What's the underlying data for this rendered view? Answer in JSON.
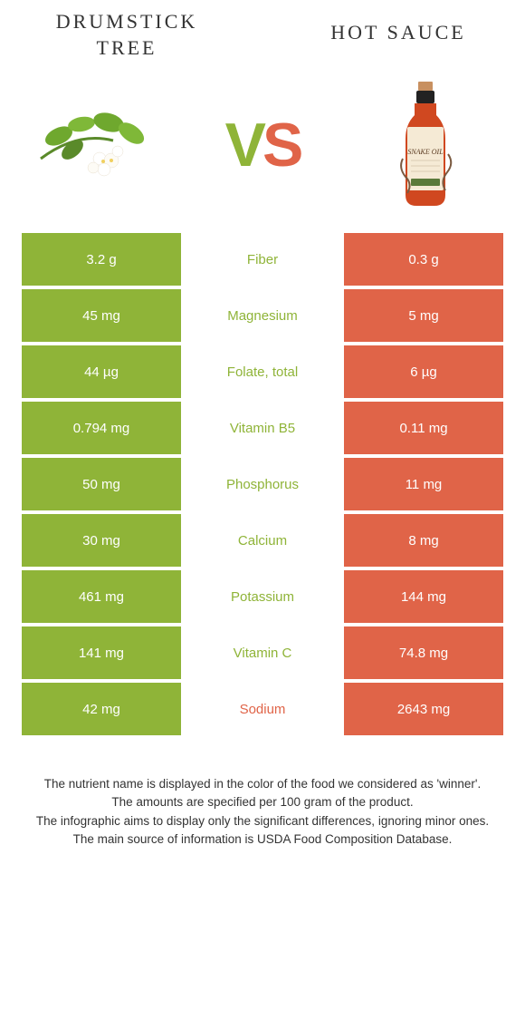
{
  "header": {
    "left_title_line1": "Drumstick",
    "left_title_line2": "tree",
    "right_title": "Hot sauce"
  },
  "vs": {
    "v": "V",
    "s": "S"
  },
  "colors": {
    "left": "#8fb438",
    "right": "#e06448",
    "bg": "#ffffff",
    "text": "#333333"
  },
  "rows": [
    {
      "left": "3.2 g",
      "label": "Fiber",
      "right": "0.3 g",
      "winner": "left"
    },
    {
      "left": "45 mg",
      "label": "Magnesium",
      "right": "5 mg",
      "winner": "left"
    },
    {
      "left": "44 µg",
      "label": "Folate, total",
      "right": "6 µg",
      "winner": "left"
    },
    {
      "left": "0.794 mg",
      "label": "Vitamin B5",
      "right": "0.11 mg",
      "winner": "left"
    },
    {
      "left": "50 mg",
      "label": "Phosphorus",
      "right": "11 mg",
      "winner": "left"
    },
    {
      "left": "30 mg",
      "label": "Calcium",
      "right": "8 mg",
      "winner": "left"
    },
    {
      "left": "461 mg",
      "label": "Potassium",
      "right": "144 mg",
      "winner": "left"
    },
    {
      "left": "141 mg",
      "label": "Vitamin C",
      "right": "74.8 mg",
      "winner": "left"
    },
    {
      "left": "42 mg",
      "label": "Sodium",
      "right": "2643 mg",
      "winner": "right"
    }
  ],
  "footer": {
    "line1": "The nutrient name is displayed in the color of the food we considered as 'winner'.",
    "line2": "The amounts are specified per 100 gram of the product.",
    "line3": "The infographic aims to display only the significant differences, ignoring minor ones.",
    "line4": "The main source of information is USDA Food Composition Database."
  },
  "bottle_label": "SNAKE OIL"
}
